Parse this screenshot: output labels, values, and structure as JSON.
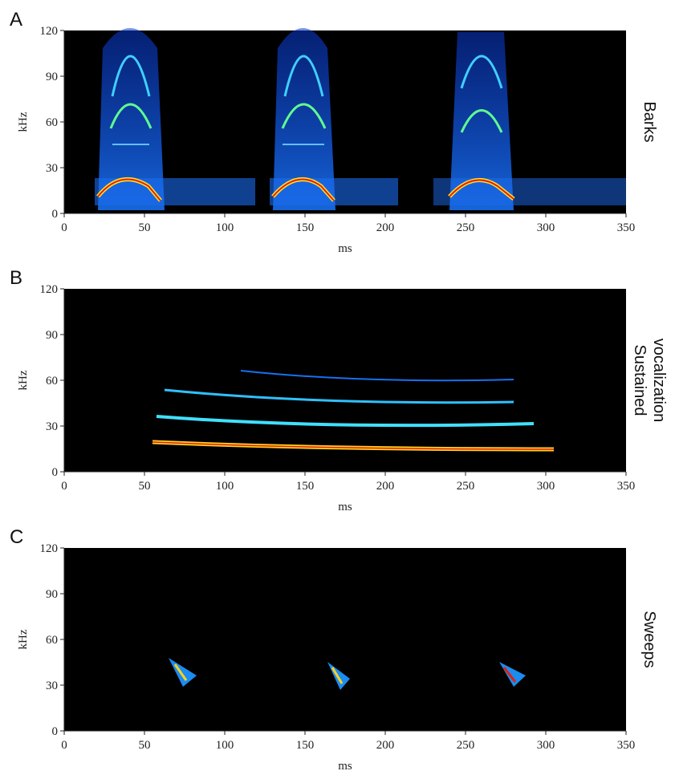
{
  "chart_data": [
    {
      "type": "spectrogram",
      "label": "A",
      "title": [
        "Barks"
      ],
      "xlabel": "ms",
      "ylabel": "kHz",
      "xlim": [
        0,
        350
      ],
      "ylim": [
        0,
        120
      ],
      "xticks": [
        0,
        50,
        100,
        150,
        200,
        250,
        300,
        350
      ],
      "yticks": [
        0,
        30,
        60,
        90,
        120
      ]
    },
    {
      "type": "spectrogram",
      "label": "B",
      "title": [
        "Sustained",
        "vocalization"
      ],
      "xlabel": "ms",
      "ylabel": "kHz",
      "xlim": [
        0,
        350
      ],
      "ylim": [
        0,
        120
      ],
      "xticks": [
        0,
        50,
        100,
        150,
        200,
        250,
        300,
        350
      ],
      "yticks": [
        0,
        30,
        60,
        90,
        120
      ]
    },
    {
      "type": "spectrogram",
      "label": "C",
      "title": [
        "Sweeps"
      ],
      "xlabel": "ms",
      "ylabel": "kHz",
      "xlim": [
        0,
        350
      ],
      "ylim": [
        0,
        120
      ],
      "xticks": [
        0,
        50,
        100,
        150,
        200,
        250,
        300,
        350
      ],
      "yticks": [
        0,
        30,
        60,
        90,
        120
      ]
    }
  ]
}
